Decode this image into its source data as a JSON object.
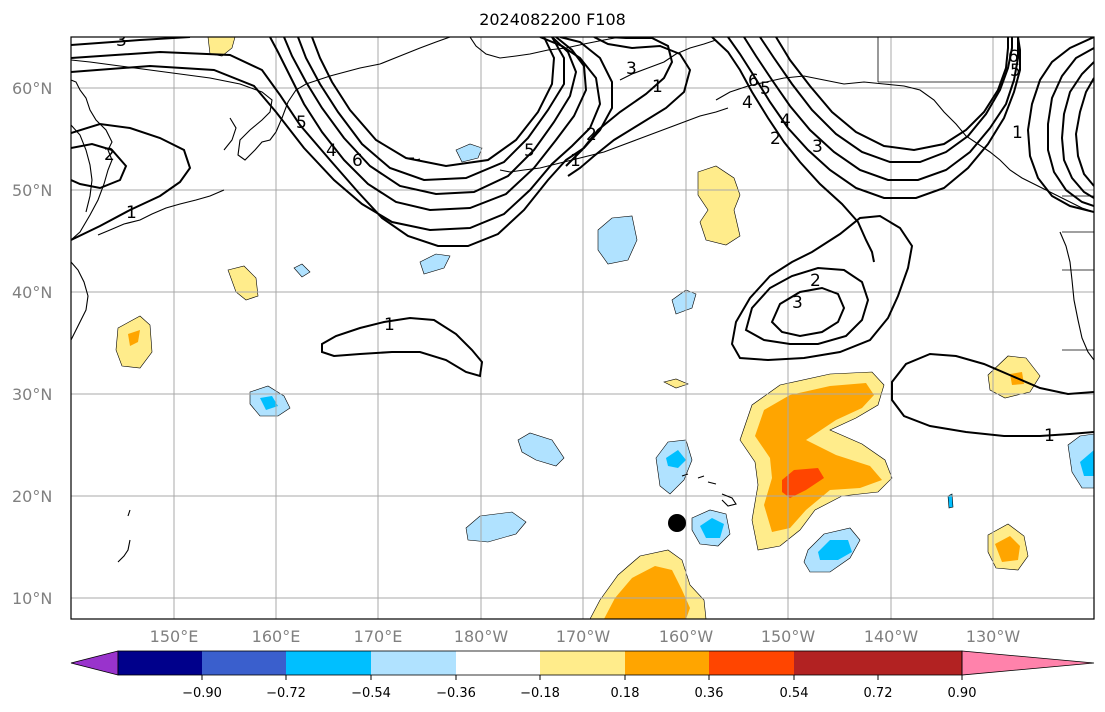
{
  "title": "2024082200 F108",
  "map": {
    "lon_ticks": [
      "150°E",
      "160°E",
      "170°E",
      "180°W",
      "170°W",
      "160°W",
      "150°W",
      "140°W",
      "130°W"
    ],
    "lat_ticks": [
      "60°N",
      "50°N",
      "40°N",
      "30°N",
      "20°N",
      "10°N"
    ],
    "lon_range": [
      140,
      240
    ],
    "lat_range": [
      8,
      65
    ],
    "marker": {
      "lon": 200.2,
      "lat": 17.4,
      "name": "storm-position-marker"
    },
    "contour_labels": [
      "3",
      "2",
      "1",
      "1",
      "5",
      "6",
      "4",
      "5",
      "1",
      "2",
      "3",
      "4",
      "5",
      "6",
      "1",
      "2",
      "3",
      "4",
      "5",
      "6",
      "1",
      "2",
      "3",
      "1"
    ]
  },
  "colorbar": {
    "colors": [
      "#9933cc",
      "#00008b",
      "#3a5fcd",
      "#00bfff",
      "#b0e2ff",
      "#ffffff",
      "#ffec8b",
      "#ffa500",
      "#ff4500",
      "#b22222",
      "#ff82ab"
    ],
    "tick_labels": [
      "−0.90",
      "−0.72",
      "−0.54",
      "−0.36",
      "−0.18",
      "0.18",
      "0.36",
      "0.54",
      "0.72",
      "0.90"
    ]
  }
}
